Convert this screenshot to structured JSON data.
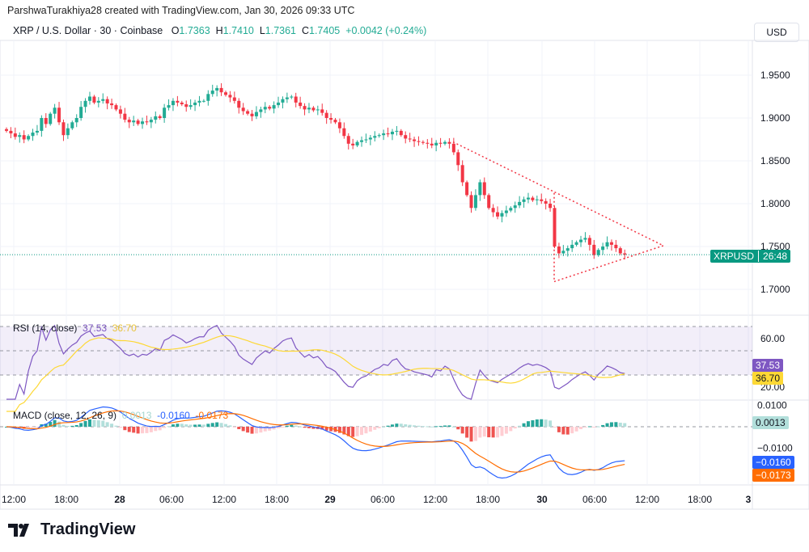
{
  "header": {
    "credit": "ParshwaTurakhiya28 created with TradingView.com, Jan 30, 2026 09:33 UTC",
    "symbol": "XRP / U.S. Dollar · 30 · Coinbase",
    "o_label": "O",
    "o": "1.7363",
    "h_label": "H",
    "h": "1.7410",
    "l_label": "L",
    "l": "1.7361",
    "c_label": "C",
    "c": "1.7405",
    "change": "+0.0042 (+0.24%)",
    "currency": "USD"
  },
  "price_tag": {
    "symbol": "XRPUSD",
    "countdown": "26:48"
  },
  "rsi": {
    "label": "RSI (14, close)",
    "value": "37.53",
    "ma": "36.70",
    "ticks": [
      "60.00",
      "20.00"
    ]
  },
  "macd": {
    "label": "MACD (close, 12, 26, 9)",
    "hist": "0.0013",
    "macd": "-0.0160",
    "signal": "-0.0173",
    "hist_tag": "0.0013",
    "macd_tag": "−0.0160",
    "signal_tag": "−0.0173",
    "ticks": [
      "0.0100",
      "−0.0100"
    ]
  },
  "logo": "TradingView",
  "colors": {
    "up": "#22ab94",
    "down": "#f23645",
    "rsi": "#7e57c2",
    "rsi_ma": "#fdd835",
    "macd": "#2962ff",
    "signal": "#ff6d00",
    "hist_up": "#26a69a",
    "hist_down": "#ef5350"
  },
  "chart_data": {
    "type": "candlestick",
    "interval": "30 minutes",
    "y_ticks": [
      "1.9500",
      "1.9000",
      "1.8500",
      "1.8000",
      "1.7500",
      "1.7000"
    ],
    "ylim": [
      1.69,
      1.98
    ],
    "x_ticks": [
      "12:00",
      "18:00",
      "28",
      "06:00",
      "12:00",
      "18:00",
      "29",
      "06:00",
      "12:00",
      "18:00",
      "30",
      "06:00",
      "12:00",
      "18:00",
      "3"
    ],
    "closes": [
      1.885,
      1.882,
      1.878,
      1.88,
      1.875,
      1.879,
      1.883,
      1.885,
      1.9,
      1.893,
      1.905,
      1.912,
      1.895,
      1.88,
      1.888,
      1.895,
      1.9,
      1.913,
      1.92,
      1.925,
      1.918,
      1.92,
      1.922,
      1.917,
      1.915,
      1.91,
      1.905,
      1.898,
      1.895,
      1.897,
      1.893,
      1.896,
      1.895,
      1.898,
      1.902,
      1.9,
      1.912,
      1.915,
      1.92,
      1.918,
      1.916,
      1.913,
      1.915,
      1.918,
      1.92,
      1.92,
      1.928,
      1.932,
      1.935,
      1.93,
      1.927,
      1.924,
      1.92,
      1.912,
      1.908,
      1.905,
      1.902,
      1.907,
      1.91,
      1.913,
      1.911,
      1.915,
      1.918,
      1.922,
      1.924,
      1.925,
      1.918,
      1.914,
      1.91,
      1.912,
      1.909,
      1.91,
      1.906,
      1.9,
      1.898,
      1.895,
      1.888,
      1.879,
      1.87,
      1.868,
      1.872,
      1.874,
      1.875,
      1.877,
      1.879,
      1.88,
      1.882,
      1.881,
      1.884,
      1.885,
      1.88,
      1.876,
      1.875,
      1.873,
      1.872,
      1.871,
      1.87,
      1.868,
      1.871,
      1.87,
      1.872,
      1.87,
      1.86,
      1.845,
      1.825,
      1.81,
      1.795,
      1.81,
      1.825,
      1.81,
      1.795,
      1.79,
      1.785,
      1.789,
      1.792,
      1.795,
      1.798,
      1.802,
      1.805,
      1.807,
      1.804,
      1.805,
      1.803,
      1.8,
      1.795,
      1.75,
      1.742,
      1.745,
      1.748,
      1.752,
      1.755,
      1.758,
      1.76,
      1.752,
      1.74,
      1.746,
      1.75,
      1.755,
      1.752,
      1.748,
      1.742,
      1.7405
    ],
    "last_close": 1.7405,
    "annotation": "triangle (dotted red trendlines)"
  }
}
